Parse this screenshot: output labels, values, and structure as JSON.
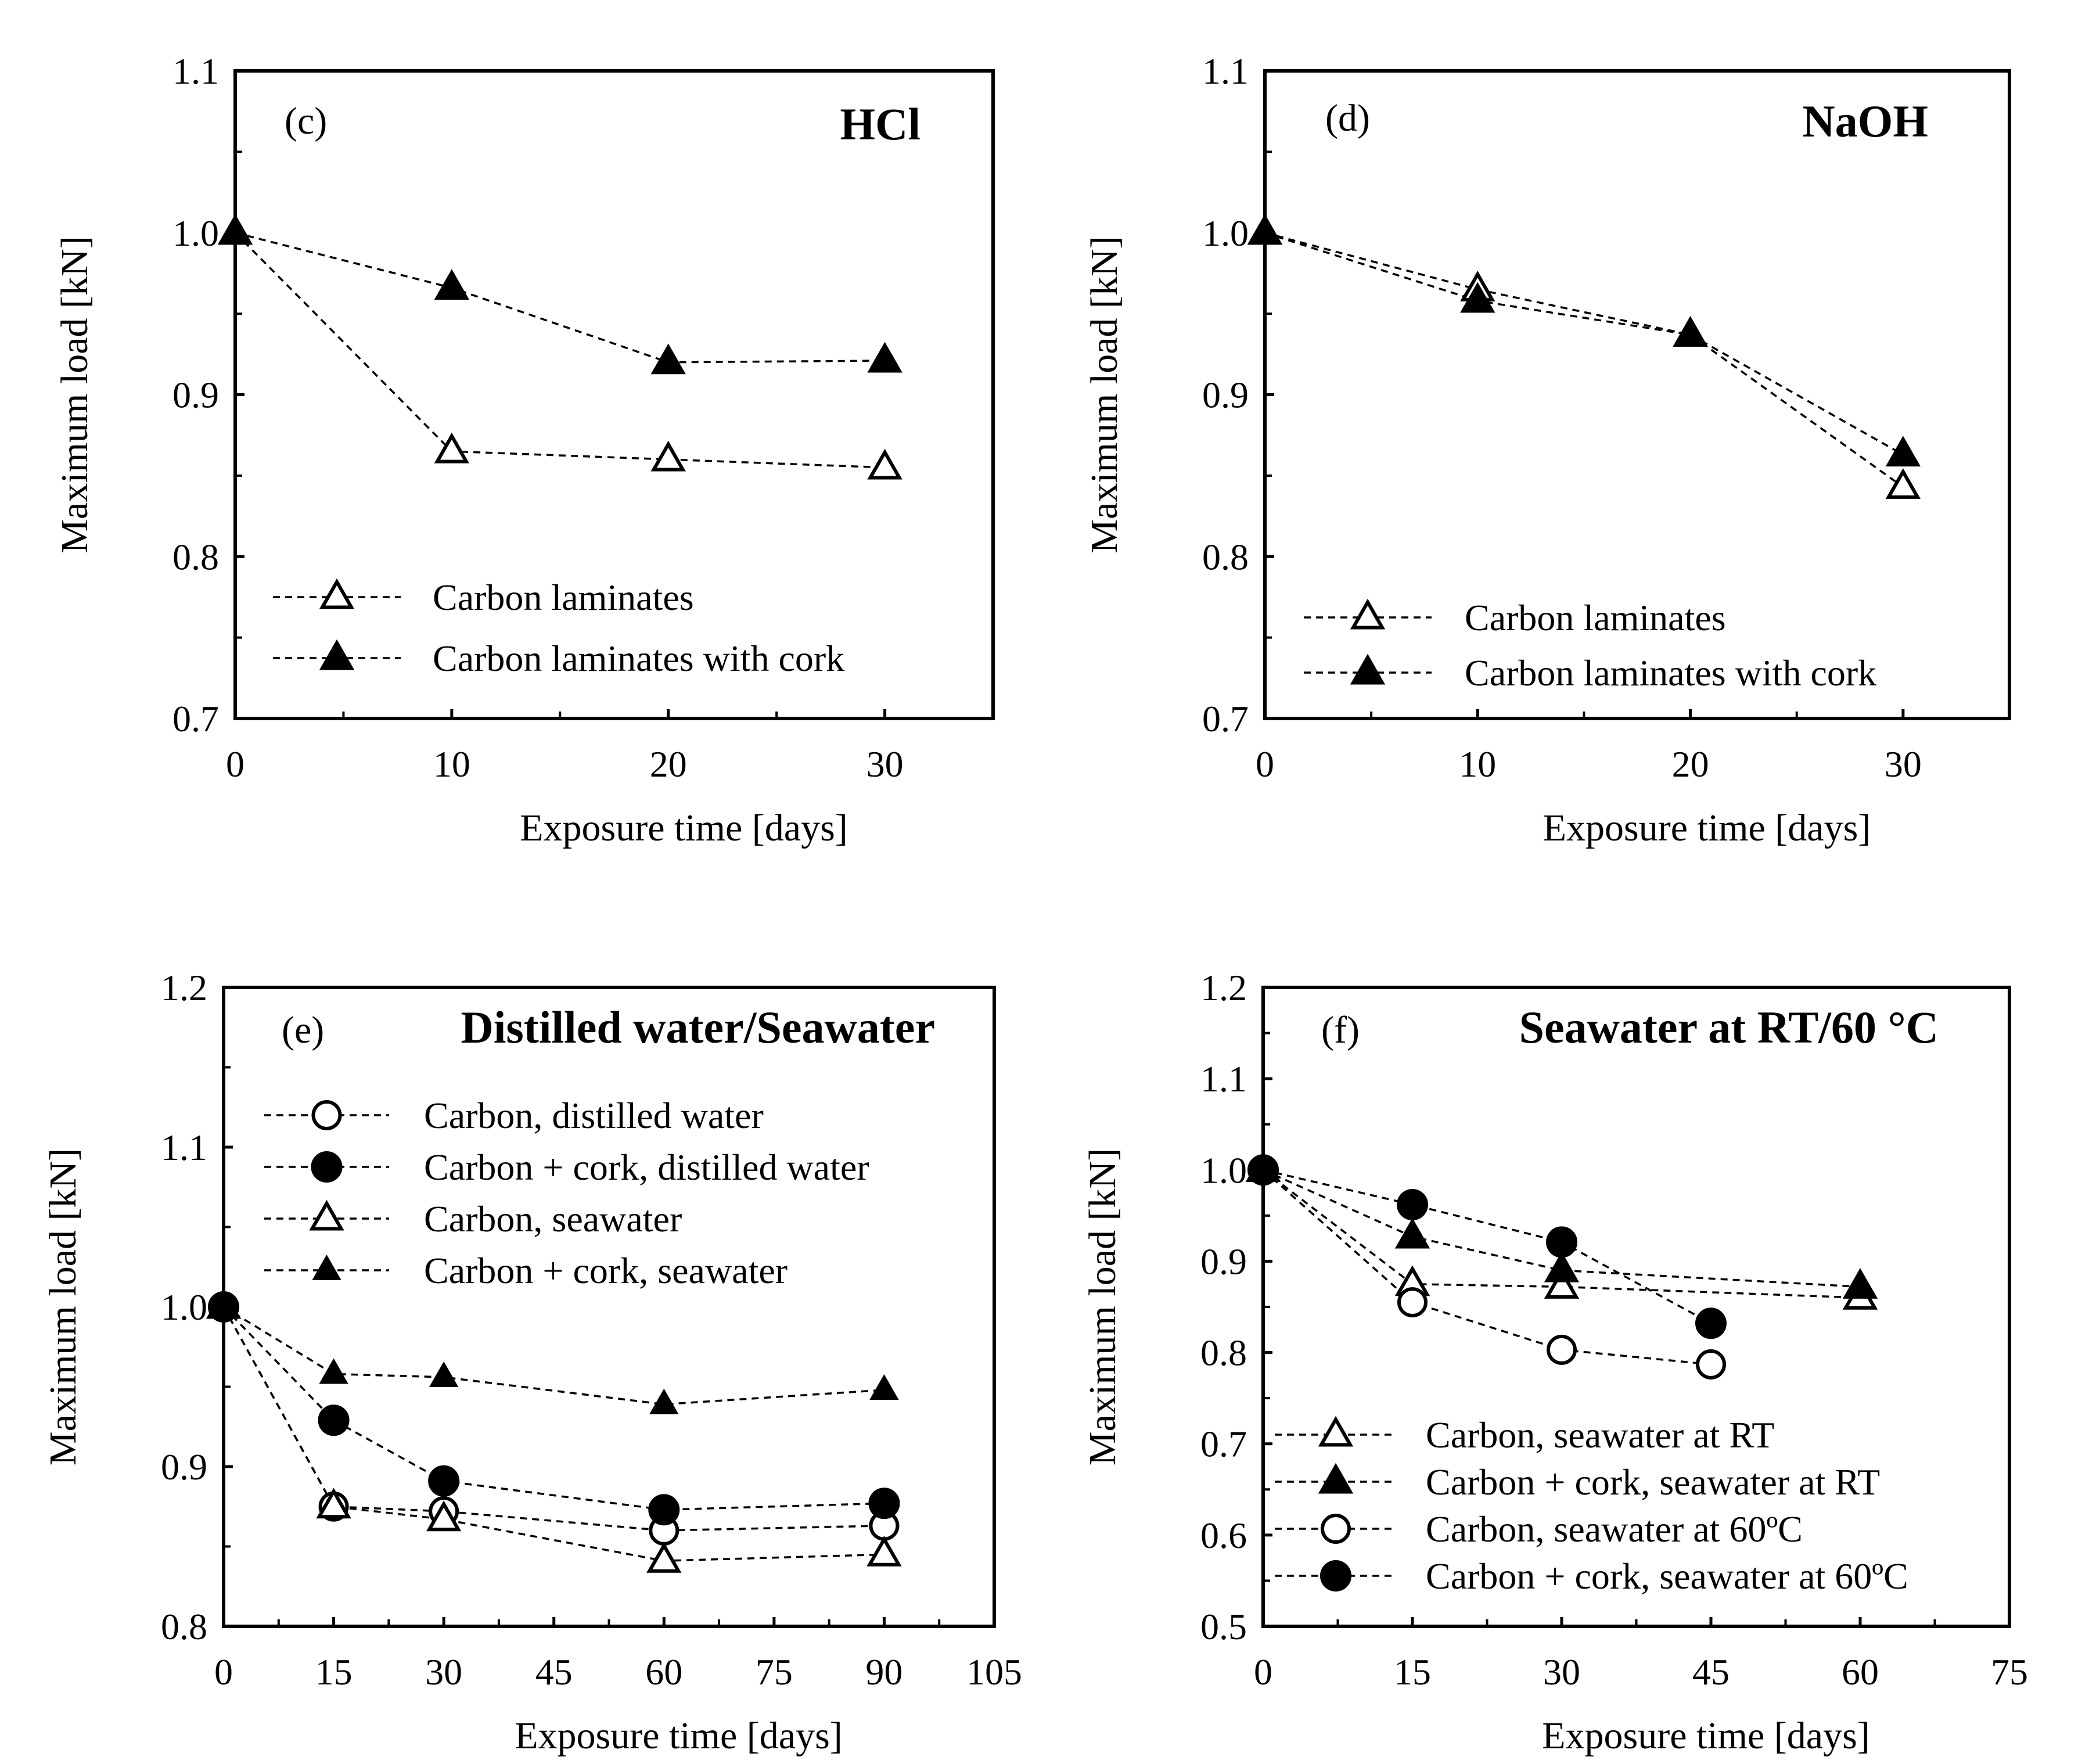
{
  "figure": {
    "background": "#ffffff",
    "line_color": "#000000"
  },
  "chart_data": [
    {
      "id": "c",
      "type": "line",
      "panel_letter": "(c)",
      "title": "HCl",
      "xlabel": "Exposure time [days]",
      "ylabel": "Maximum load [kN]",
      "xlim": [
        0,
        35
      ],
      "ylim": [
        0.7,
        1.1
      ],
      "xticks": [
        0,
        10,
        20,
        30
      ],
      "xtick_labels": [
        "0",
        "10",
        "20",
        "30"
      ],
      "yticks": [
        0.7,
        0.8,
        0.9,
        1.0,
        1.1
      ],
      "ytick_labels": [
        "0.7",
        "0.8",
        "0.9",
        "1.0",
        "1.1"
      ],
      "legend_position": "bottom-left",
      "series": [
        {
          "name": "Carbon laminates",
          "marker": "triangle-open",
          "x": [
            0,
            10,
            20,
            30
          ],
          "values": [
            1.0,
            0.865,
            0.86,
            0.855
          ]
        },
        {
          "name": "Carbon laminates with cork",
          "marker": "triangle-filled",
          "x": [
            0,
            10,
            20,
            30
          ],
          "values": [
            1.0,
            0.966,
            0.92,
            0.921
          ]
        }
      ]
    },
    {
      "id": "d",
      "type": "line",
      "panel_letter": "(d)",
      "title": "NaOH",
      "xlabel": "Exposure time [days]",
      "ylabel": "Maximum load [kN]",
      "xlim": [
        0,
        35
      ],
      "ylim": [
        0.7,
        1.1
      ],
      "xticks": [
        0,
        10,
        20,
        30
      ],
      "xtick_labels": [
        "0",
        "10",
        "20",
        "30"
      ],
      "yticks": [
        0.7,
        0.8,
        0.9,
        1.0,
        1.1
      ],
      "ytick_labels": [
        "0.7",
        "0.8",
        "0.9",
        "1.0",
        "1.1"
      ],
      "legend_position": "bottom-left",
      "series": [
        {
          "name": "Carbon laminates",
          "marker": "triangle-open",
          "x": [
            0,
            10,
            20,
            30
          ],
          "values": [
            1.0,
            0.965,
            0.937,
            0.843
          ]
        },
        {
          "name": "Carbon laminates with cork",
          "marker": "triangle-filled",
          "x": [
            0,
            10,
            20,
            30
          ],
          "values": [
            1.0,
            0.958,
            0.937,
            0.863
          ]
        }
      ]
    },
    {
      "id": "e",
      "type": "line",
      "panel_letter": "(e)",
      "title": "Distilled water/Seawater",
      "xlabel": "Exposure time [days]",
      "ylabel": "Maximum load [kN]",
      "xlim": [
        0,
        105
      ],
      "ylim": [
        0.8,
        1.2
      ],
      "xticks": [
        0,
        15,
        30,
        45,
        60,
        75,
        90,
        105
      ],
      "xtick_labels": [
        "0",
        "15",
        "30",
        "45",
        "60",
        "75",
        "90",
        "105"
      ],
      "yticks": [
        0.8,
        0.9,
        1.0,
        1.1,
        1.2
      ],
      "ytick_labels": [
        "0.8",
        "0.9",
        "1.0",
        "1.1",
        "1.2"
      ],
      "legend_position": "top-left",
      "series": [
        {
          "name": "Carbon, distilled water",
          "marker": "circle-open",
          "x": [
            0,
            15,
            30,
            60,
            90
          ],
          "values": [
            1.0,
            0.875,
            0.872,
            0.86,
            0.863
          ]
        },
        {
          "name": "Carbon + cork, distilled water",
          "marker": "circle-filled",
          "x": [
            0,
            15,
            30,
            60,
            90
          ],
          "values": [
            1.0,
            0.929,
            0.891,
            0.873,
            0.877
          ]
        },
        {
          "name": "Carbon, seawater",
          "marker": "triangle-open",
          "x": [
            0,
            15,
            30,
            60,
            90
          ],
          "values": [
            1.0,
            0.875,
            0.867,
            0.841,
            0.845
          ]
        },
        {
          "name": "Carbon + cork, seawater",
          "marker": "triangle-filled-small",
          "x": [
            0,
            15,
            30,
            60,
            90
          ],
          "values": [
            1.0,
            0.958,
            0.956,
            0.939,
            0.948
          ]
        }
      ]
    },
    {
      "id": "f",
      "type": "line",
      "panel_letter": "(f)",
      "title": "Seawater at RT/60 °C",
      "xlabel": "Exposure time [days]",
      "ylabel": "Maximum load [kN]",
      "xlim": [
        0,
        75
      ],
      "ylim": [
        0.5,
        1.2
      ],
      "xticks": [
        0,
        15,
        30,
        45,
        60,
        75
      ],
      "xtick_labels": [
        "0",
        "15",
        "30",
        "45",
        "60",
        "75"
      ],
      "yticks": [
        0.5,
        0.6,
        0.7,
        0.8,
        0.9,
        1.0,
        1.1,
        1.2
      ],
      "ytick_labels": [
        "0.5",
        "0.6",
        "0.7",
        "0.8",
        "0.9",
        "1.0",
        "1.1",
        "1.2"
      ],
      "legend_position": "bottom-left",
      "series": [
        {
          "name": "Carbon, seawater at RT",
          "marker": "triangle-open",
          "x": [
            0,
            15,
            30,
            60
          ],
          "values": [
            1.0,
            0.875,
            0.872,
            0.86
          ]
        },
        {
          "name": "Carbon + cork, seawater at RT",
          "marker": "triangle-filled",
          "x": [
            0,
            15,
            30,
            60
          ],
          "values": [
            1.0,
            0.927,
            0.89,
            0.872
          ]
        },
        {
          "name": "Carbon, seawater at 60ºC",
          "marker": "circle-open",
          "x": [
            0,
            15,
            30,
            45
          ],
          "values": [
            1.0,
            0.855,
            0.803,
            0.787
          ]
        },
        {
          "name": "Carbon + cork, seawater at 60ºC",
          "marker": "circle-filled",
          "x": [
            0,
            15,
            30,
            45
          ],
          "values": [
            1.0,
            0.962,
            0.921,
            0.832
          ]
        }
      ]
    }
  ]
}
